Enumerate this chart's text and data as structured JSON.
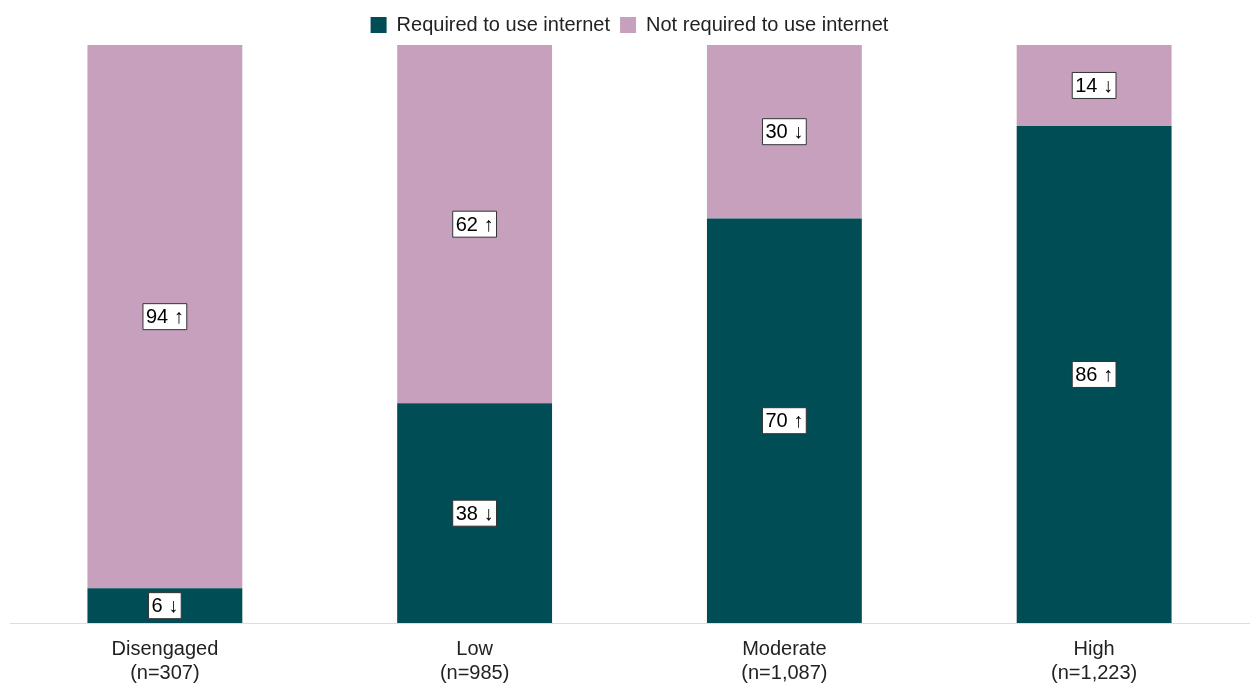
{
  "chart_data": {
    "type": "bar",
    "stacked": true,
    "legend": "top",
    "grid": false,
    "tick_labels": "x",
    "categories": [
      "Disengaged\n(n=307)",
      "Low\n(n=985)",
      "Moderate\n(n=1,087)",
      "High\n(n=1,223)"
    ],
    "series": [
      {
        "name": "Required to use internet",
        "color": "#004d55",
        "values": [
          6,
          38,
          70,
          86
        ],
        "value_labels": [
          "6 ↓",
          "38 ↓",
          "70 ↑",
          "86 ↑"
        ]
      },
      {
        "name": "Not required to use internet",
        "color": "#c7a0bd",
        "values": [
          94,
          62,
          30,
          14
        ],
        "value_labels": [
          "94 ↑",
          "62 ↑",
          "30 ↓",
          "14 ↓"
        ]
      }
    ]
  }
}
